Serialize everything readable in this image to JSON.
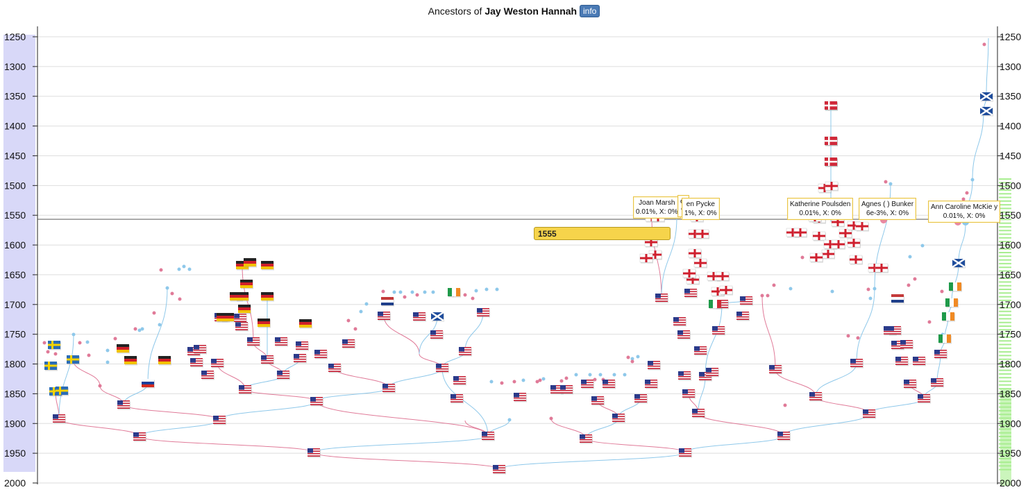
{
  "header": {
    "prefix": "Ancestors of ",
    "person": "Jay Weston Hannah",
    "info_label": "info"
  },
  "axis": {
    "years": [
      "1250",
      "1300",
      "1350",
      "1400",
      "1450",
      "1500",
      "1550",
      "1600",
      "1650",
      "1700",
      "1750",
      "1800",
      "1850",
      "1900",
      "1950",
      "2000"
    ]
  },
  "cursor": {
    "year": "1555"
  },
  "tooltips": [
    {
      "name": "Joan Marsh",
      "stats": "0.01%, X: 0%"
    },
    {
      "name": "ett",
      "stats": "%"
    },
    {
      "name": "en Pycke",
      "stats": "1%, X: 0%"
    },
    {
      "name": "Katherine Poulsden",
      "stats": "0.01%, X: 0%"
    },
    {
      "name": "Agnes ( ) Bunker",
      "stats": "6e-3%, X: 0%"
    },
    {
      "name": "Ann Caroline McKie y",
      "stats": "0.01%, X: 0%"
    }
  ],
  "colors": {
    "male_line": "#8ec8ea",
    "female_line": "#e07a98",
    "left_band": "#d8d8f8",
    "right_band": "#a8ee90",
    "tooltip_border": "#e8c34a",
    "cursor_box": "#f6d44b"
  },
  "flags": {
    "usa": [
      [
        85,
        603
      ],
      [
        201,
        629
      ],
      [
        452,
        652
      ],
      [
        719,
        676
      ],
      [
        316,
        605
      ],
      [
        178,
        583
      ],
      [
        456,
        578
      ],
      [
        560,
        559
      ],
      [
        703,
        628
      ],
      [
        844,
        632
      ],
      [
        987,
        652
      ],
      [
        1129,
        628
      ],
      [
        1252,
        596
      ],
      [
        1331,
        574
      ],
      [
        1175,
        571
      ],
      [
        1006,
        595
      ],
      [
        891,
        602
      ],
      [
        353,
        561
      ],
      [
        408,
        540
      ],
      [
        482,
        530
      ],
      [
        637,
        530
      ],
      [
        670,
        506
      ],
      [
        629,
        482
      ],
      [
        696,
        450
      ],
      [
        553,
        455
      ],
      [
        604,
        456
      ],
      [
        385,
        518
      ],
      [
        432,
        516
      ],
      [
        462,
        510
      ],
      [
        502,
        495
      ],
      [
        435,
        498
      ],
      [
        365,
        492
      ],
      [
        405,
        492
      ],
      [
        348,
        470
      ],
      [
        313,
        523
      ],
      [
        283,
        522
      ],
      [
        299,
        540
      ],
      [
        279,
        506
      ],
      [
        288,
        503
      ],
      [
        318,
        457
      ],
      [
        346,
        458
      ],
      [
        662,
        548
      ],
      [
        658,
        574
      ],
      [
        749,
        572
      ],
      [
        802,
        561
      ],
      [
        816,
        561
      ],
      [
        846,
        553
      ],
      [
        877,
        553
      ],
      [
        861,
        577
      ],
      [
        923,
        574
      ],
      [
        938,
        553
      ],
      [
        942,
        526
      ],
      [
        986,
        541
      ],
      [
        992,
        567
      ],
      [
        1016,
        542
      ],
      [
        1026,
        536
      ],
      [
        1009,
        505
      ],
      [
        985,
        482
      ],
      [
        979,
        463
      ],
      [
        953,
        429
      ],
      [
        995,
        422
      ],
      [
        1035,
        476
      ],
      [
        1040,
        438
      ],
      [
        1075,
        433
      ],
      [
        1070,
        455
      ],
      [
        1117,
        532
      ],
      [
        1234,
        523
      ],
      [
        1282,
        476
      ],
      [
        1289,
        476
      ],
      [
        1293,
        497
      ],
      [
        1299,
        520
      ],
      [
        1306,
        496
      ],
      [
        1311,
        553
      ],
      [
        1324,
        520
      ],
      [
        1350,
        551
      ],
      [
        1355,
        510
      ]
    ],
    "germany": [
      [
        177,
        502
      ],
      [
        188,
        519
      ],
      [
        237,
        519
      ],
      [
        349,
        382
      ],
      [
        360,
        378
      ],
      [
        385,
        382
      ],
      [
        355,
        409
      ],
      [
        340,
        427
      ],
      [
        349,
        427
      ],
      [
        385,
        427
      ],
      [
        352,
        445
      ],
      [
        380,
        465
      ],
      [
        440,
        466
      ],
      [
        321,
        457
      ],
      [
        328,
        457
      ]
    ],
    "sweden": [
      [
        78,
        497
      ],
      [
        73,
        527
      ],
      [
        105,
        518
      ],
      [
        80,
        564
      ],
      [
        89,
        563
      ]
    ],
    "scotland": [
      [
        630,
        456
      ],
      [
        1381,
        379
      ],
      [
        1421,
        139
      ],
      [
        1421,
        160
      ]
    ],
    "ireland": [
      [
        654,
        421
      ],
      [
        1376,
        413
      ],
      [
        1371,
        436
      ],
      [
        1366,
        456
      ],
      [
        1361,
        488
      ]
    ],
    "netherlands": [
      [
        558,
        434
      ],
      [
        1293,
        430
      ]
    ],
    "russia": [
      [
        213,
        552
      ]
    ],
    "england": [
      [
        1197,
        152
      ],
      [
        1197,
        203
      ],
      [
        1197,
        233
      ],
      [
        1188,
        271
      ],
      [
        1198,
        268
      ],
      [
        1167,
        301
      ],
      [
        1181,
        298
      ],
      [
        1142,
        335
      ],
      [
        1153,
        335
      ],
      [
        1180,
        340
      ],
      [
        1196,
        352
      ],
      [
        1208,
        352
      ],
      [
        1218,
        336
      ],
      [
        1193,
        366
      ],
      [
        1207,
        320
      ],
      [
        1230,
        325
      ],
      [
        1242,
        326
      ],
      [
        1230,
        350
      ],
      [
        1260,
        386
      ],
      [
        1270,
        386
      ],
      [
        1176,
        371
      ],
      [
        1233,
        374
      ],
      [
        1180,
        315
      ],
      [
        1174,
        313
      ],
      [
        1001,
        337
      ],
      [
        1012,
        337
      ],
      [
        1001,
        365
      ],
      [
        1009,
        379
      ],
      [
        998,
        403
      ],
      [
        993,
        394
      ],
      [
        1028,
        398
      ],
      [
        1041,
        398
      ],
      [
        1034,
        420
      ],
      [
        1046,
        418
      ],
      [
        944,
        367
      ],
      [
        931,
        372
      ],
      [
        938,
        349
      ],
      [
        939,
        313
      ],
      [
        948,
        313
      ],
      [
        1004,
        313
      ]
    ],
    "denmark": [
      [
        1197,
        152
      ],
      [
        1197,
        203
      ],
      [
        1197,
        233
      ]
    ],
    "italy": [
      [
        1030,
        438
      ]
    ]
  },
  "male_dots": [
    [
      106,
      482
    ],
    [
      126,
      493
    ],
    [
      155,
      522
    ],
    [
      155,
      505
    ],
    [
      201,
      476
    ],
    [
      205,
      474
    ],
    [
      230,
      468
    ],
    [
      241,
      415
    ],
    [
      258,
      388
    ],
    [
      265,
      384
    ],
    [
      273,
      388
    ],
    [
      520,
      449
    ],
    [
      528,
      438
    ],
    [
      568,
      421
    ],
    [
      577,
      421
    ],
    [
      594,
      421
    ],
    [
      612,
      421
    ],
    [
      624,
      421
    ],
    [
      686,
      419
    ],
    [
      701,
      417
    ],
    [
      716,
      417
    ],
    [
      708,
      550
    ],
    [
      734,
      605
    ],
    [
      754,
      548
    ],
    [
      783,
      546
    ],
    [
      830,
      540
    ],
    [
      850,
      540
    ],
    [
      865,
      540
    ],
    [
      885,
      540
    ],
    [
      900,
      540
    ],
    [
      911,
      517
    ],
    [
      919,
      514
    ],
    [
      1139,
      416
    ],
    [
      1199,
      420
    ],
    [
      1254,
      430
    ],
    [
      1260,
      416
    ],
    [
      1283,
      265
    ],
    [
      1311,
      370
    ],
    [
      1329,
      354
    ],
    [
      1358,
      482
    ],
    [
      1391,
      322
    ],
    [
      1401,
      259
    ],
    [
      1417,
      160
    ]
  ],
  "female_dots": [
    [
      64,
      494
    ],
    [
      69,
      507
    ],
    [
      80,
      510
    ],
    [
      115,
      494
    ],
    [
      128,
      512
    ],
    [
      144,
      556
    ],
    [
      166,
      488
    ],
    [
      195,
      474
    ],
    [
      222,
      451
    ],
    [
      232,
      389
    ],
    [
      248,
      423
    ],
    [
      259,
      431
    ],
    [
      502,
      462
    ],
    [
      512,
      474
    ],
    [
      552,
      420
    ],
    [
      583,
      428
    ],
    [
      601,
      425
    ],
    [
      653,
      425
    ],
    [
      670,
      425
    ],
    [
      681,
      430
    ],
    [
      723,
      552
    ],
    [
      741,
      550
    ],
    [
      774,
      550
    ],
    [
      778,
      548
    ],
    [
      794,
      603
    ],
    [
      809,
      549
    ],
    [
      816,
      545
    ],
    [
      857,
      547
    ],
    [
      869,
      547
    ],
    [
      905,
      515
    ],
    [
      911,
      521
    ],
    [
      1098,
      426
    ],
    [
      1106,
      426
    ],
    [
      1115,
      411
    ],
    [
      1131,
      584
    ],
    [
      1156,
      371
    ],
    [
      1222,
      484
    ],
    [
      1236,
      487
    ],
    [
      1251,
      417
    ],
    [
      1272,
      293
    ],
    [
      1276,
      262
    ],
    [
      1309,
      411
    ],
    [
      1318,
      402
    ],
    [
      1339,
      464
    ],
    [
      1357,
      420
    ],
    [
      1380,
      320
    ],
    [
      1388,
      287
    ],
    [
      1393,
      278
    ],
    [
      1418,
      64
    ]
  ]
}
